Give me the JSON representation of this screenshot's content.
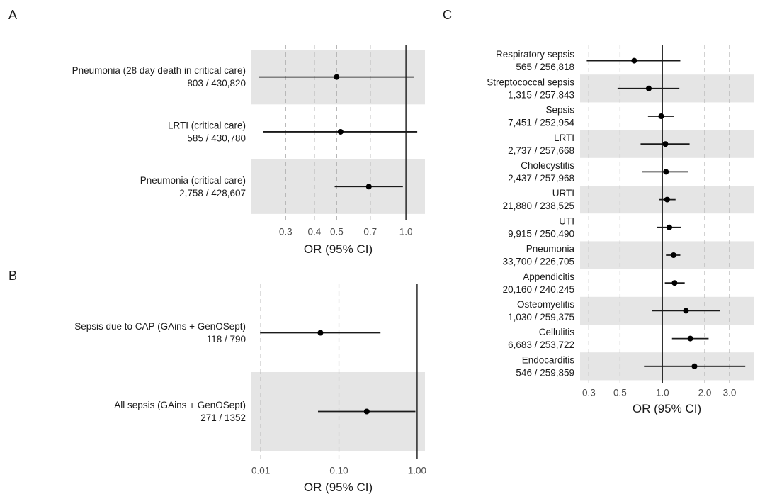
{
  "chart_data": [
    {
      "panel": "A",
      "type": "forest",
      "xscale": "log",
      "xlabel": "OR (95% CI)",
      "xlim": [
        0.213,
        1.21
      ],
      "ticks": [
        0.3,
        0.4,
        0.5,
        0.7,
        1.0
      ],
      "tick_labels": [
        "0.3",
        "0.4",
        "0.5",
        "0.7",
        "1.0"
      ],
      "reference": 1.0,
      "rows": [
        {
          "label": "Pneumonia (28 day death in critical care)",
          "counts": "803 / 430,820",
          "or": 0.5,
          "lo": 0.23,
          "hi": 1.08
        },
        {
          "label": "LRTI (critical care)",
          "counts": "585 / 430,780",
          "or": 0.52,
          "lo": 0.24,
          "hi": 1.12
        },
        {
          "label": "Pneumonia (critical care)",
          "counts": "2,758 / 428,607",
          "or": 0.69,
          "lo": 0.49,
          "hi": 0.97
        }
      ]
    },
    {
      "panel": "B",
      "type": "forest",
      "xscale": "log",
      "xlabel": "OR (95% CI)",
      "xlim": [
        0.0076,
        1.26
      ],
      "ticks": [
        0.01,
        0.1,
        1.0
      ],
      "tick_labels": [
        "0.01",
        "0.10",
        "1.00"
      ],
      "reference": 1.0,
      "rows": [
        {
          "label": "Sepsis due to CAP (GAins + GenOSept)",
          "counts": "118 / 790",
          "or": 0.058,
          "lo": 0.0098,
          "hi": 0.34
        },
        {
          "label": "All sepsis (GAins + GenOSept)",
          "counts": "271 / 1352",
          "or": 0.227,
          "lo": 0.054,
          "hi": 0.95
        }
      ]
    },
    {
      "panel": "C",
      "type": "forest",
      "xscale": "log",
      "xlabel": "OR (95% CI)",
      "xlim": [
        0.26,
        4.45
      ],
      "ticks": [
        0.3,
        0.5,
        1.0,
        2.0,
        3.0
      ],
      "tick_labels": [
        "0.3",
        "0.5",
        "1.0",
        "2.0",
        "3.0"
      ],
      "reference": 1.0,
      "rows": [
        {
          "label": "Respiratory sepsis",
          "counts": "565 / 256,818",
          "or": 0.63,
          "lo": 0.29,
          "hi": 1.34
        },
        {
          "label": "Streptococcal sepsis",
          "counts": "1,315 / 257,843",
          "or": 0.8,
          "lo": 0.48,
          "hi": 1.32
        },
        {
          "label": "Sepsis",
          "counts": "7,451 / 252,954",
          "or": 0.98,
          "lo": 0.79,
          "hi": 1.21
        },
        {
          "label": "LRTI",
          "counts": "2,737 / 257,668",
          "or": 1.05,
          "lo": 0.7,
          "hi": 1.56
        },
        {
          "label": "Cholecystitis",
          "counts": "2,437 / 257,968",
          "or": 1.06,
          "lo": 0.72,
          "hi": 1.53
        },
        {
          "label": "URTI",
          "counts": "21,880 / 238,525",
          "or": 1.08,
          "lo": 0.95,
          "hi": 1.24
        },
        {
          "label": "UTI",
          "counts": "9,915 / 250,490",
          "or": 1.12,
          "lo": 0.91,
          "hi": 1.36
        },
        {
          "label": "Pneumonia",
          "counts": "33,700 / 226,705",
          "or": 1.2,
          "lo": 1.06,
          "hi": 1.34
        },
        {
          "label": "Appendicitis",
          "counts": "20,160 / 240,245",
          "or": 1.22,
          "lo": 1.04,
          "hi": 1.44
        },
        {
          "label": "Osteomyelitis",
          "counts": "1,030 / 259,375",
          "or": 1.47,
          "lo": 0.84,
          "hi": 2.56
        },
        {
          "label": "Cellulitis",
          "counts": "6,683 / 253,722",
          "or": 1.58,
          "lo": 1.17,
          "hi": 2.13
        },
        {
          "label": "Endocarditis",
          "counts": "546 / 259,859",
          "or": 1.69,
          "lo": 0.74,
          "hi": 3.88
        }
      ]
    }
  ],
  "colors": {
    "band": "#e5e5e5",
    "grid": "#b3b3b3",
    "mark": "#000000",
    "ci": "#1a1a1a"
  }
}
